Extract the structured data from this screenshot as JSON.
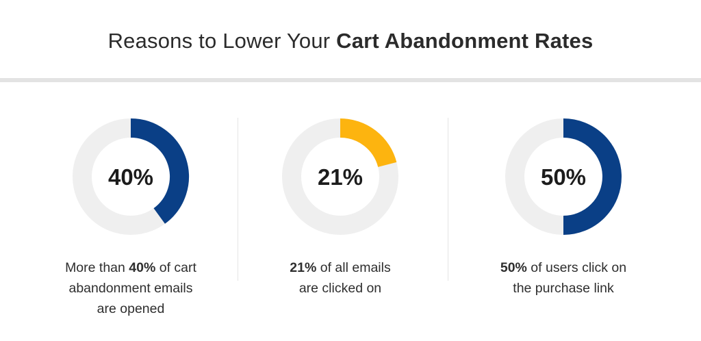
{
  "title": {
    "lead": "Reasons to Lower Your ",
    "emphasis": "Cart Abandonment Rates"
  },
  "colors": {
    "track": "#efefef",
    "blue": "#0a3f86",
    "yellow": "#fdb40f",
    "rule": "#e3e3e3"
  },
  "chart_data": [
    {
      "type": "pie",
      "value": 40,
      "label": "40%",
      "color": "#0a3f86",
      "caption": {
        "prefix": "More than ",
        "highlight": "40%",
        "line1_rest": " of cart",
        "line2": "abandonment emails",
        "line3": "are opened"
      }
    },
    {
      "type": "pie",
      "value": 21,
      "label": "21%",
      "color": "#fdb40f",
      "caption": {
        "highlight": "21%",
        "line1_rest": " of all emails",
        "line2": "are clicked on"
      }
    },
    {
      "type": "pie",
      "value": 50,
      "label": "50%",
      "color": "#0a3f86",
      "caption": {
        "highlight": "50%",
        "line1_rest": " of users click on",
        "line2": "the purchase link"
      }
    }
  ]
}
